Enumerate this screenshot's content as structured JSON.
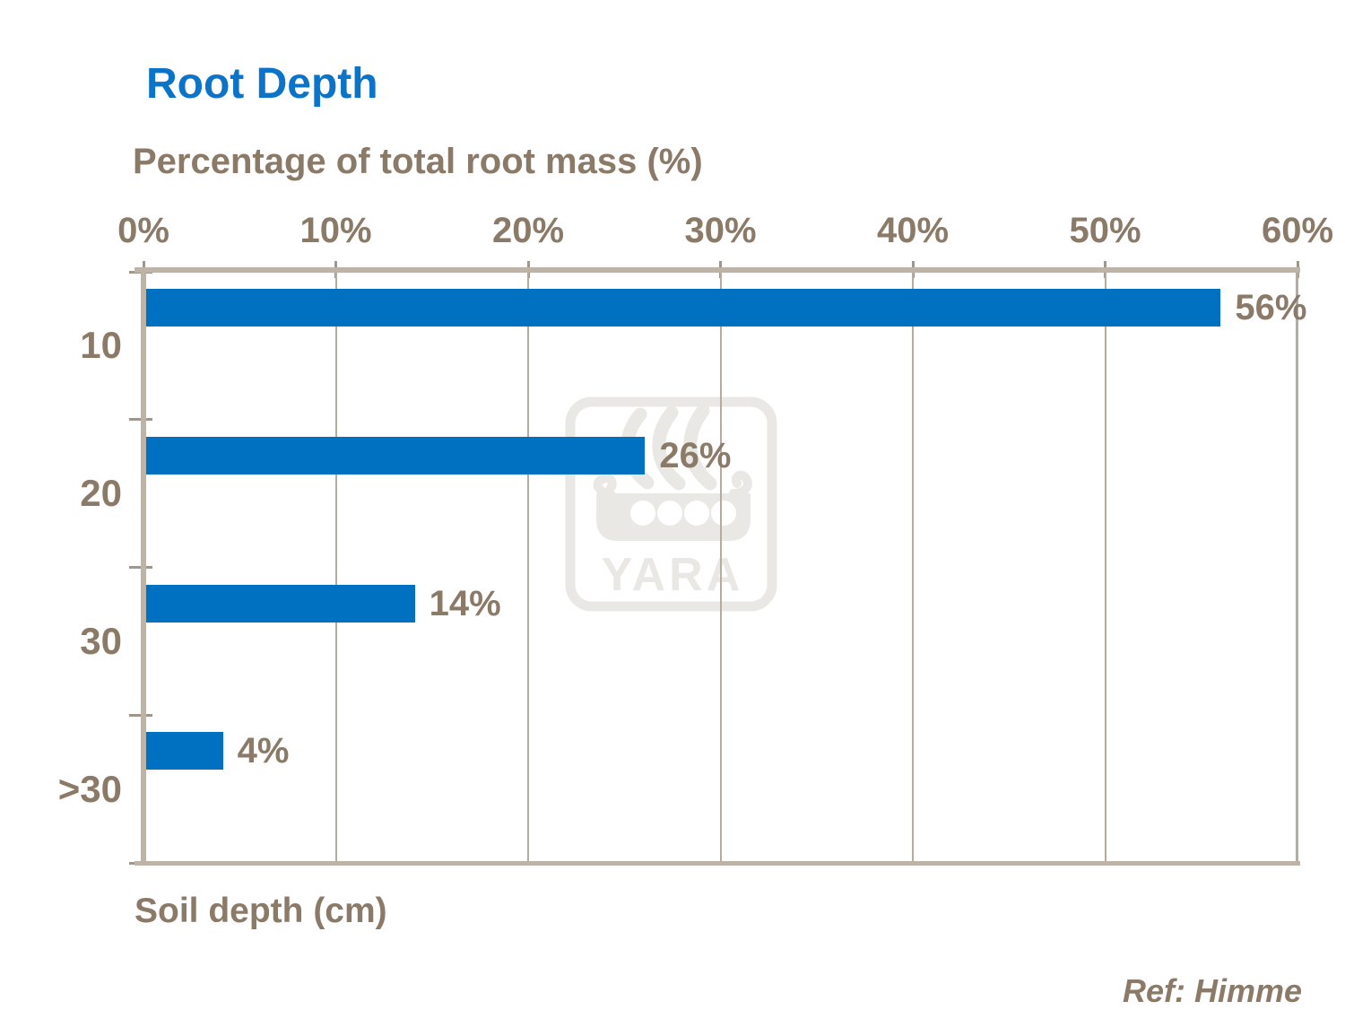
{
  "header": {
    "title": "Root Depth",
    "title_color": "#0b74c9"
  },
  "chart_data": {
    "type": "bar",
    "orientation": "horizontal",
    "title": "Root Depth",
    "top_axis_title": "Percentage of total root mass (%)",
    "bottom_axis_title": "Soil depth (cm)",
    "categories": [
      "10",
      "20",
      "30",
      ">30"
    ],
    "values": [
      56,
      26,
      14,
      4
    ],
    "data_labels": [
      "56%",
      "26%",
      "14%",
      "4%"
    ],
    "x_ticks": [
      {
        "value": 0,
        "label": "0%"
      },
      {
        "value": 10,
        "label": "10%"
      },
      {
        "value": 20,
        "label": "20%"
      },
      {
        "value": 30,
        "label": "30%"
      },
      {
        "value": 40,
        "label": "40%"
      },
      {
        "value": 50,
        "label": "50%"
      },
      {
        "value": 60,
        "label": "60%"
      }
    ],
    "xlim": [
      0,
      60
    ],
    "grid": true,
    "legend": false,
    "bar_color": "#0070C0",
    "label_color": "#8a7a67",
    "axis_color": "#bdb3a7",
    "gridline_color": "#b5ab9e",
    "tick_color": "#a1968a"
  },
  "watermark": {
    "label": "YARA",
    "color": "#e9e8e5"
  },
  "footer": {
    "reference": "Ref: Himme"
  }
}
